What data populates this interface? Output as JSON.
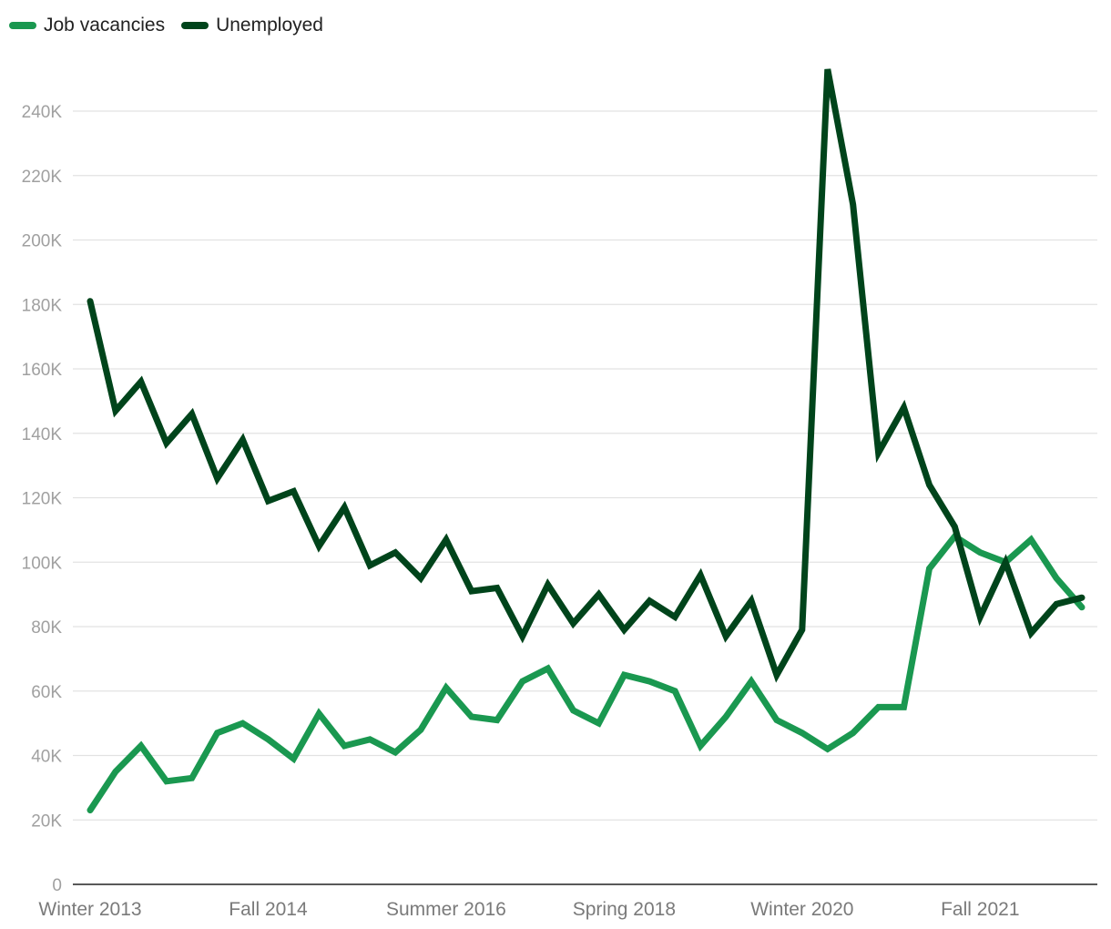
{
  "chart_data": {
    "type": "line",
    "title": "",
    "xlabel": "",
    "ylabel": "",
    "ylim": [
      0,
      255000
    ],
    "grid": true,
    "legend_placement": "top-left",
    "x_tick_labels": [
      "Winter 2013",
      "Fall 2014",
      "Summer 2016",
      "Spring 2018",
      "Winter 2020",
      "Fall 2021"
    ],
    "x_tick_positions": [
      0,
      7,
      14,
      21,
      28,
      35
    ],
    "y_ticks": [
      0,
      20000,
      40000,
      60000,
      80000,
      100000,
      120000,
      140000,
      160000,
      180000,
      200000,
      220000,
      240000
    ],
    "y_tick_labels": [
      "0",
      "20K",
      "40K",
      "60K",
      "80K",
      "100K",
      "120K",
      "140K",
      "160K",
      "180K",
      "200K",
      "220K",
      "240K"
    ],
    "series": [
      {
        "name": "Job vacancies",
        "color": "#1a9850",
        "values": [
          23000,
          35000,
          43000,
          32000,
          33000,
          47000,
          50000,
          45000,
          39000,
          53000,
          43000,
          45000,
          41000,
          48000,
          61000,
          52000,
          51000,
          63000,
          67000,
          54000,
          50000,
          65000,
          63000,
          60000,
          43000,
          52000,
          63000,
          51000,
          47000,
          42000,
          47000,
          55000,
          55000,
          98000,
          108000,
          103000,
          100000,
          107000,
          95000,
          86000
        ]
      },
      {
        "name": "Unemployed",
        "color": "#00441b",
        "values": [
          181000,
          147000,
          156000,
          137000,
          146000,
          126000,
          138000,
          119000,
          122000,
          105000,
          117000,
          99000,
          103000,
          95000,
          107000,
          91000,
          92000,
          77000,
          93000,
          81000,
          90000,
          79000,
          88000,
          83000,
          96000,
          77000,
          88000,
          65000,
          79000,
          253000,
          211000,
          134000,
          148000,
          124000,
          111000,
          83000,
          100000,
          78000,
          87000,
          89000
        ]
      }
    ]
  }
}
